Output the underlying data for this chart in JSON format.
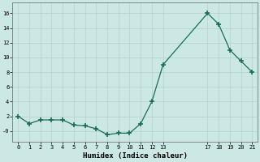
{
  "x": [
    0,
    1,
    2,
    3,
    4,
    5,
    6,
    7,
    8,
    9,
    10,
    11,
    12,
    13,
    17,
    18,
    19,
    20,
    21
  ],
  "y": [
    2,
    1,
    1.5,
    1.5,
    1.5,
    0.8,
    0.7,
    0.3,
    -0.5,
    -0.3,
    -0.3,
    1,
    4,
    9,
    16,
    14.5,
    11,
    9.5,
    8
  ],
  "line_color": "#1a6b5a",
  "marker": "+",
  "bg_color": "#cce8e4",
  "grid_color": "#b8d4d0",
  "xlabel": "Humidex (Indice chaleur)",
  "xlim": [
    -0.5,
    21.5
  ],
  "ylim": [
    -1.5,
    17.5
  ],
  "yticks": [
    0,
    2,
    4,
    6,
    8,
    10,
    12,
    14,
    16
  ],
  "ytick_labels": [
    "-0",
    "2",
    "4",
    "6",
    "8",
    "10",
    "12",
    "14",
    "16"
  ],
  "xticks": [
    0,
    1,
    2,
    3,
    4,
    5,
    6,
    7,
    8,
    9,
    10,
    11,
    12,
    13,
    17,
    18,
    19,
    20,
    21
  ],
  "xtick_labels": [
    "0",
    "1",
    "2",
    "3",
    "4",
    "5",
    "6",
    "7",
    "8",
    "9",
    "10",
    "11",
    "12",
    "13",
    "17",
    "18",
    "19",
    "20",
    "21"
  ]
}
